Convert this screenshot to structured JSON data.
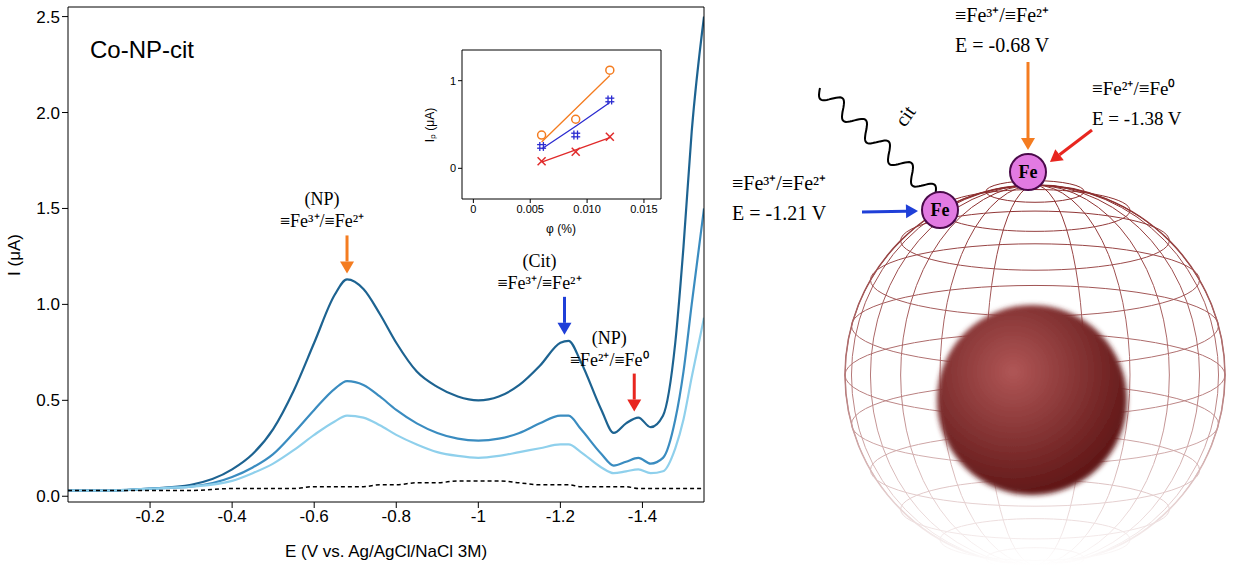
{
  "chart_data": [
    {
      "type": "line",
      "title": "Co-NP-cit",
      "x_label": "E (V vs. Ag/AgCl/NaCl 3M)",
      "y_label": "I (μA)",
      "x": [
        0,
        -0.1,
        -0.2,
        -0.3,
        -0.4,
        -0.45,
        -0.5,
        -0.55,
        -0.6,
        -0.65,
        -0.68,
        -0.72,
        -0.76,
        -0.8,
        -0.85,
        -0.9,
        -0.95,
        -1.0,
        -1.05,
        -1.1,
        -1.15,
        -1.2,
        -1.22,
        -1.25,
        -1.3,
        -1.33,
        -1.36,
        -1.39,
        -1.42,
        -1.45,
        -1.48,
        -1.5,
        -1.52,
        -1.55
      ],
      "series": [
        {
          "color": "#1d6391",
          "values": [
            0.03,
            0.03,
            0.04,
            0.06,
            0.14,
            0.22,
            0.35,
            0.55,
            0.8,
            1.05,
            1.13,
            1.08,
            0.95,
            0.8,
            0.65,
            0.57,
            0.52,
            0.5,
            0.52,
            0.58,
            0.68,
            0.8,
            0.81,
            0.7,
            0.45,
            0.33,
            0.38,
            0.41,
            0.36,
            0.42,
            0.8,
            1.3,
            1.9,
            2.5
          ]
        },
        {
          "color": "#3a8cc0",
          "values": [
            0.03,
            0.03,
            0.04,
            0.05,
            0.1,
            0.15,
            0.22,
            0.33,
            0.45,
            0.56,
            0.6,
            0.58,
            0.52,
            0.45,
            0.38,
            0.33,
            0.3,
            0.29,
            0.3,
            0.33,
            0.38,
            0.42,
            0.42,
            0.35,
            0.22,
            0.16,
            0.18,
            0.2,
            0.17,
            0.2,
            0.4,
            0.65,
            1.0,
            1.5
          ]
        },
        {
          "color": "#8fd0ec",
          "values": [
            0.03,
            0.03,
            0.04,
            0.05,
            0.08,
            0.12,
            0.17,
            0.24,
            0.32,
            0.39,
            0.42,
            0.41,
            0.37,
            0.32,
            0.27,
            0.23,
            0.21,
            0.2,
            0.21,
            0.23,
            0.25,
            0.27,
            0.27,
            0.23,
            0.15,
            0.12,
            0.13,
            0.14,
            0.12,
            0.13,
            0.25,
            0.4,
            0.62,
            0.93
          ]
        },
        {
          "color": "#000000",
          "line_style": "dashed",
          "values": [
            0.03,
            0.03,
            0.03,
            0.03,
            0.04,
            0.04,
            0.04,
            0.04,
            0.05,
            0.05,
            0.05,
            0.05,
            0.06,
            0.06,
            0.07,
            0.07,
            0.08,
            0.08,
            0.08,
            0.07,
            0.06,
            0.06,
            0.06,
            0.05,
            0.05,
            0.05,
            0.05,
            0.04,
            0.04,
            0.04,
            0.04,
            0.04,
            0.04,
            0.04
          ]
        }
      ],
      "xlim": [
        0,
        -1.55
      ],
      "ylim": [
        -0.03,
        2.55
      ],
      "xticks": [
        -0.2,
        -0.4,
        -0.6,
        -0.8,
        -1.0,
        -1.2,
        -1.4
      ],
      "yticks": [
        {
          "value": 0,
          "label": "0.0"
        },
        0.5,
        {
          "value": 1,
          "label": "1.0"
        },
        1.5,
        {
          "value": 2,
          "label": "2.0"
        },
        2.5
      ],
      "annotations": [
        {
          "lines": [
            "(NP)",
            "≡Fe³⁺/≡Fe²⁺"
          ],
          "x": -0.68,
          "y": 1.13,
          "color": "#f47c20"
        },
        {
          "lines": [
            "(Cit)",
            "≡Fe³⁺/≡Fe²⁺"
          ],
          "x": -1.21,
          "y": 0.81,
          "color": "#1f3fd8"
        },
        {
          "lines": [
            "(NP)",
            "≡Fe²⁺/≡Fe⁰"
          ],
          "x": -1.38,
          "y": 0.41,
          "color": "#e8261f"
        }
      ]
    },
    {
      "type": "scatter",
      "x_label": "φ (%)",
      "y_label": "Iₚ (μA)",
      "x": [
        0.006,
        0.009,
        0.012
      ],
      "series": [
        {
          "color": "#f47c20",
          "marker": "circle",
          "values": [
            0.38,
            0.56,
            1.12
          ],
          "fit": [
            0.3,
            0.68,
            1.06
          ]
        },
        {
          "color": "#2b2bd0",
          "marker": "hash",
          "values": [
            0.25,
            0.38,
            0.78
          ],
          "fit": [
            0.22,
            0.48,
            0.75
          ]
        },
        {
          "color": "#e02a2a",
          "marker": "x",
          "values": [
            0.08,
            0.19,
            0.36
          ],
          "fit": [
            0.07,
            0.21,
            0.35
          ]
        }
      ],
      "xlim": [
        -0.001,
        0.0165
      ],
      "ylim": [
        -0.35,
        1.35
      ],
      "xticks": [
        0,
        0.005,
        {
          "value": 0.01,
          "label": "0.010"
        },
        0.015
      ],
      "yticks": [
        0,
        1
      ]
    }
  ],
  "diagram": {
    "atom_label": "Fe",
    "ligand_label": "cit",
    "labels": [
      {
        "lines": [
          "≡Fe³⁺/≡Fe²⁺",
          "E = -0.68 V"
        ],
        "color": "#f47c20"
      },
      {
        "lines": [
          "≡Fe²⁺/≡Fe⁰",
          "E = -1.38 V"
        ],
        "color": "#e8261f"
      },
      {
        "lines": [
          "≡Fe³⁺/≡Fe²⁺",
          "E = -1.21 V"
        ],
        "color": "#1f3fd8"
      }
    ]
  }
}
